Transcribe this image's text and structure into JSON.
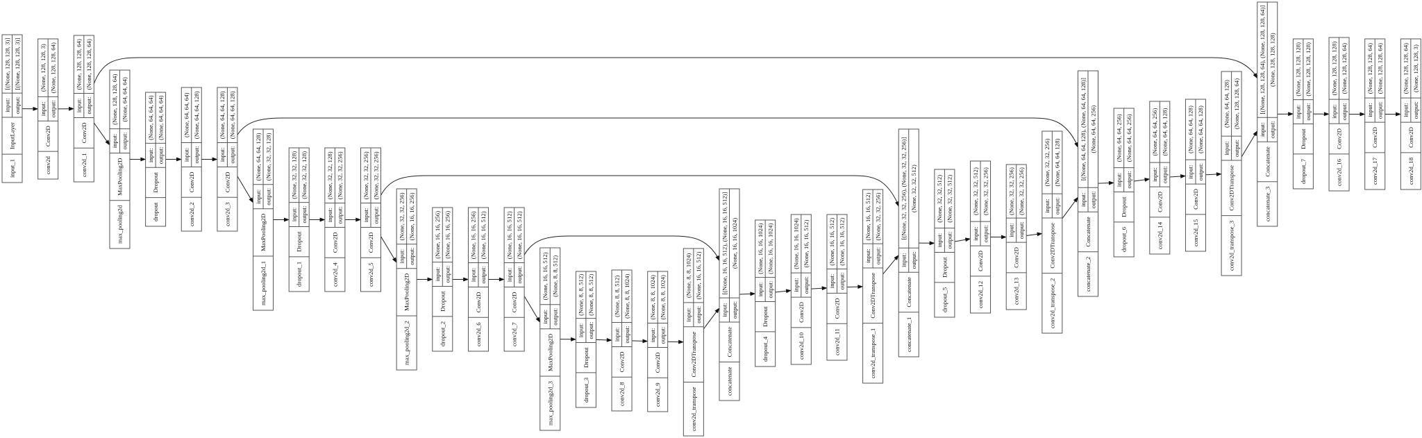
{
  "labels": {
    "input": "input:",
    "output": "output:"
  },
  "colors": {
    "background": "#ffffff",
    "box_stroke": "#555555",
    "edge": "#222222"
  },
  "nodes": [
    {
      "name": "input_1",
      "type": "InputLayer",
      "input": "[(None, 128, 128, 3)]",
      "output": "[(None, 128, 128, 3)]"
    },
    {
      "name": "conv2d",
      "type": "Conv2D",
      "input": "(None, 128, 128, 3)",
      "output": "(None, 128, 128, 64)"
    },
    {
      "name": "conv2d_1",
      "type": "Conv2D",
      "input": "(None, 128, 128, 64)",
      "output": "(None, 128, 128, 64)"
    },
    {
      "name": "max_pooling2d",
      "type": "MaxPooling2D",
      "input": "(None, 128, 128, 64)",
      "output": "(None, 64, 64, 64)"
    },
    {
      "name": "dropout",
      "type": "Dropout",
      "input": "(None, 64, 64, 64)",
      "output": "(None, 64, 64, 64)"
    },
    {
      "name": "conv2d_2",
      "type": "Conv2D",
      "input": "(None, 64, 64, 64)",
      "output": "(None, 64, 64, 128)"
    },
    {
      "name": "conv2d_3",
      "type": "Conv2D",
      "input": "(None, 64, 64, 128)",
      "output": "(None, 64, 64, 128)"
    },
    {
      "name": "max_pooling2d_1",
      "type": "MaxPooling2D",
      "input": "(None, 64, 64, 128)",
      "output": "(None, 32, 32, 128)"
    },
    {
      "name": "dropout_1",
      "type": "Dropout",
      "input": "(None, 32, 32, 128)",
      "output": "(None, 32, 32, 128)"
    },
    {
      "name": "conv2d_4",
      "type": "Conv2D",
      "input": "(None, 32, 32, 128)",
      "output": "(None, 32, 32, 256)"
    },
    {
      "name": "conv2d_5",
      "type": "Conv2D",
      "input": "(None, 32, 32, 256)",
      "output": "(None, 32, 32, 256)"
    },
    {
      "name": "max_pooling2d_2",
      "type": "MaxPooling2D",
      "input": "(None, 32, 32, 256)",
      "output": "(None, 16, 16, 256)"
    },
    {
      "name": "dropout_2",
      "type": "Dropout",
      "input": "(None, 16, 16, 256)",
      "output": "(None, 16, 16, 256)"
    },
    {
      "name": "conv2d_6",
      "type": "Conv2D",
      "input": "(None, 16, 16, 256)",
      "output": "(None, 16, 16, 512)"
    },
    {
      "name": "conv2d_7",
      "type": "Conv2D",
      "input": "(None, 16, 16, 512)",
      "output": "(None, 16, 16, 512)"
    },
    {
      "name": "max_pooling2d_3",
      "type": "MaxPooling2D",
      "input": "(None, 16, 16, 512)",
      "output": "(None, 8, 8, 512)"
    },
    {
      "name": "dropout_3",
      "type": "Dropout",
      "input": "(None, 8, 8, 512)",
      "output": "(None, 8, 8, 512)"
    },
    {
      "name": "conv2d_8",
      "type": "Conv2D",
      "input": "(None, 8, 8, 512)",
      "output": "(None, 8, 8, 1024)"
    },
    {
      "name": "conv2d_9",
      "type": "Conv2D",
      "input": "(None, 8, 8, 1024)",
      "output": "(None, 8, 8, 1024)"
    },
    {
      "name": "conv2d_transpose",
      "type": "Conv2DTranspose",
      "input": "(None, 8, 8, 1024)",
      "output": "(None, 16, 16, 512)"
    },
    {
      "name": "concatenate",
      "type": "Concatenate",
      "input": "[(None, 16, 16, 512), (None, 16, 16, 512)]",
      "output": "(None, 16, 16, 1024)"
    },
    {
      "name": "dropout_4",
      "type": "Dropout",
      "input": "(None, 16, 16, 1024)",
      "output": "(None, 16, 16, 1024)"
    },
    {
      "name": "conv2d_10",
      "type": "Conv2D",
      "input": "(None, 16, 16, 1024)",
      "output": "(None, 16, 16, 512)"
    },
    {
      "name": "conv2d_11",
      "type": "Conv2D",
      "input": "(None, 16, 16, 512)",
      "output": "(None, 16, 16, 512)"
    },
    {
      "name": "conv2d_transpose_1",
      "type": "Conv2DTranspose",
      "input": "(None, 16, 16, 512)",
      "output": "(None, 32, 32, 256)"
    },
    {
      "name": "concatenate_1",
      "type": "Concatenate",
      "input": "[(None, 32, 32, 256), (None, 32, 32, 256)]",
      "output": "(None, 32, 32, 512)"
    },
    {
      "name": "dropout_5",
      "type": "Dropout",
      "input": "(None, 32, 32, 512)",
      "output": "(None, 32, 32, 512)"
    },
    {
      "name": "conv2d_12",
      "type": "Conv2D",
      "input": "(None, 32, 32, 512)",
      "output": "(None, 32, 32, 256)"
    },
    {
      "name": "conv2d_13",
      "type": "Conv2D",
      "input": "(None, 32, 32, 256)",
      "output": "(None, 32, 32, 256)"
    },
    {
      "name": "conv2d_transpose_2",
      "type": "Conv2DTranspose",
      "input": "(None, 32, 32, 256)",
      "output": "(None, 64, 64, 128)"
    },
    {
      "name": "concatenate_2",
      "type": "Concatenate",
      "input": "[(None, 64, 64, 128), (None, 64, 64, 128)]",
      "output": "(None, 64, 64, 256)"
    },
    {
      "name": "dropout_6",
      "type": "Dropout",
      "input": "(None, 64, 64, 256)",
      "output": "(None, 64, 64, 256)"
    },
    {
      "name": "conv2d_14",
      "type": "Conv2D",
      "input": "(None, 64, 64, 256)",
      "output": "(None, 64, 64, 128)"
    },
    {
      "name": "conv2d_15",
      "type": "Conv2D",
      "input": "(None, 64, 64, 128)",
      "output": "(None, 64, 64, 128)"
    },
    {
      "name": "conv2d_transpose_3",
      "type": "Conv2DTranspose",
      "input": "(None, 64, 64, 128)",
      "output": "(None, 128, 128, 64)"
    },
    {
      "name": "concatenate_3",
      "type": "Concatenate",
      "input": "[(None, 128, 128, 64), (None, 128, 128, 64)]",
      "output": "(None, 128, 128, 128)"
    },
    {
      "name": "dropout_7",
      "type": "Dropout",
      "input": "(None, 128, 128, 128)",
      "output": "(None, 128, 128, 128)"
    },
    {
      "name": "conv2d_16",
      "type": "Conv2D",
      "input": "(None, 128, 128, 128)",
      "output": "(None, 128, 128, 64)"
    },
    {
      "name": "conv2d_17",
      "type": "Conv2D",
      "input": "(None, 128, 128, 64)",
      "output": "(None, 128, 128, 64)"
    },
    {
      "name": "conv2d_18",
      "type": "Conv2D",
      "input": "(None, 128, 128, 64)",
      "output": "(None, 128, 128, 3)"
    }
  ],
  "skip_edges": [
    [
      "conv2d_1",
      "concatenate_3"
    ],
    [
      "conv2d_3",
      "concatenate_2"
    ],
    [
      "conv2d_5",
      "concatenate_1"
    ],
    [
      "conv2d_7",
      "concatenate"
    ]
  ]
}
